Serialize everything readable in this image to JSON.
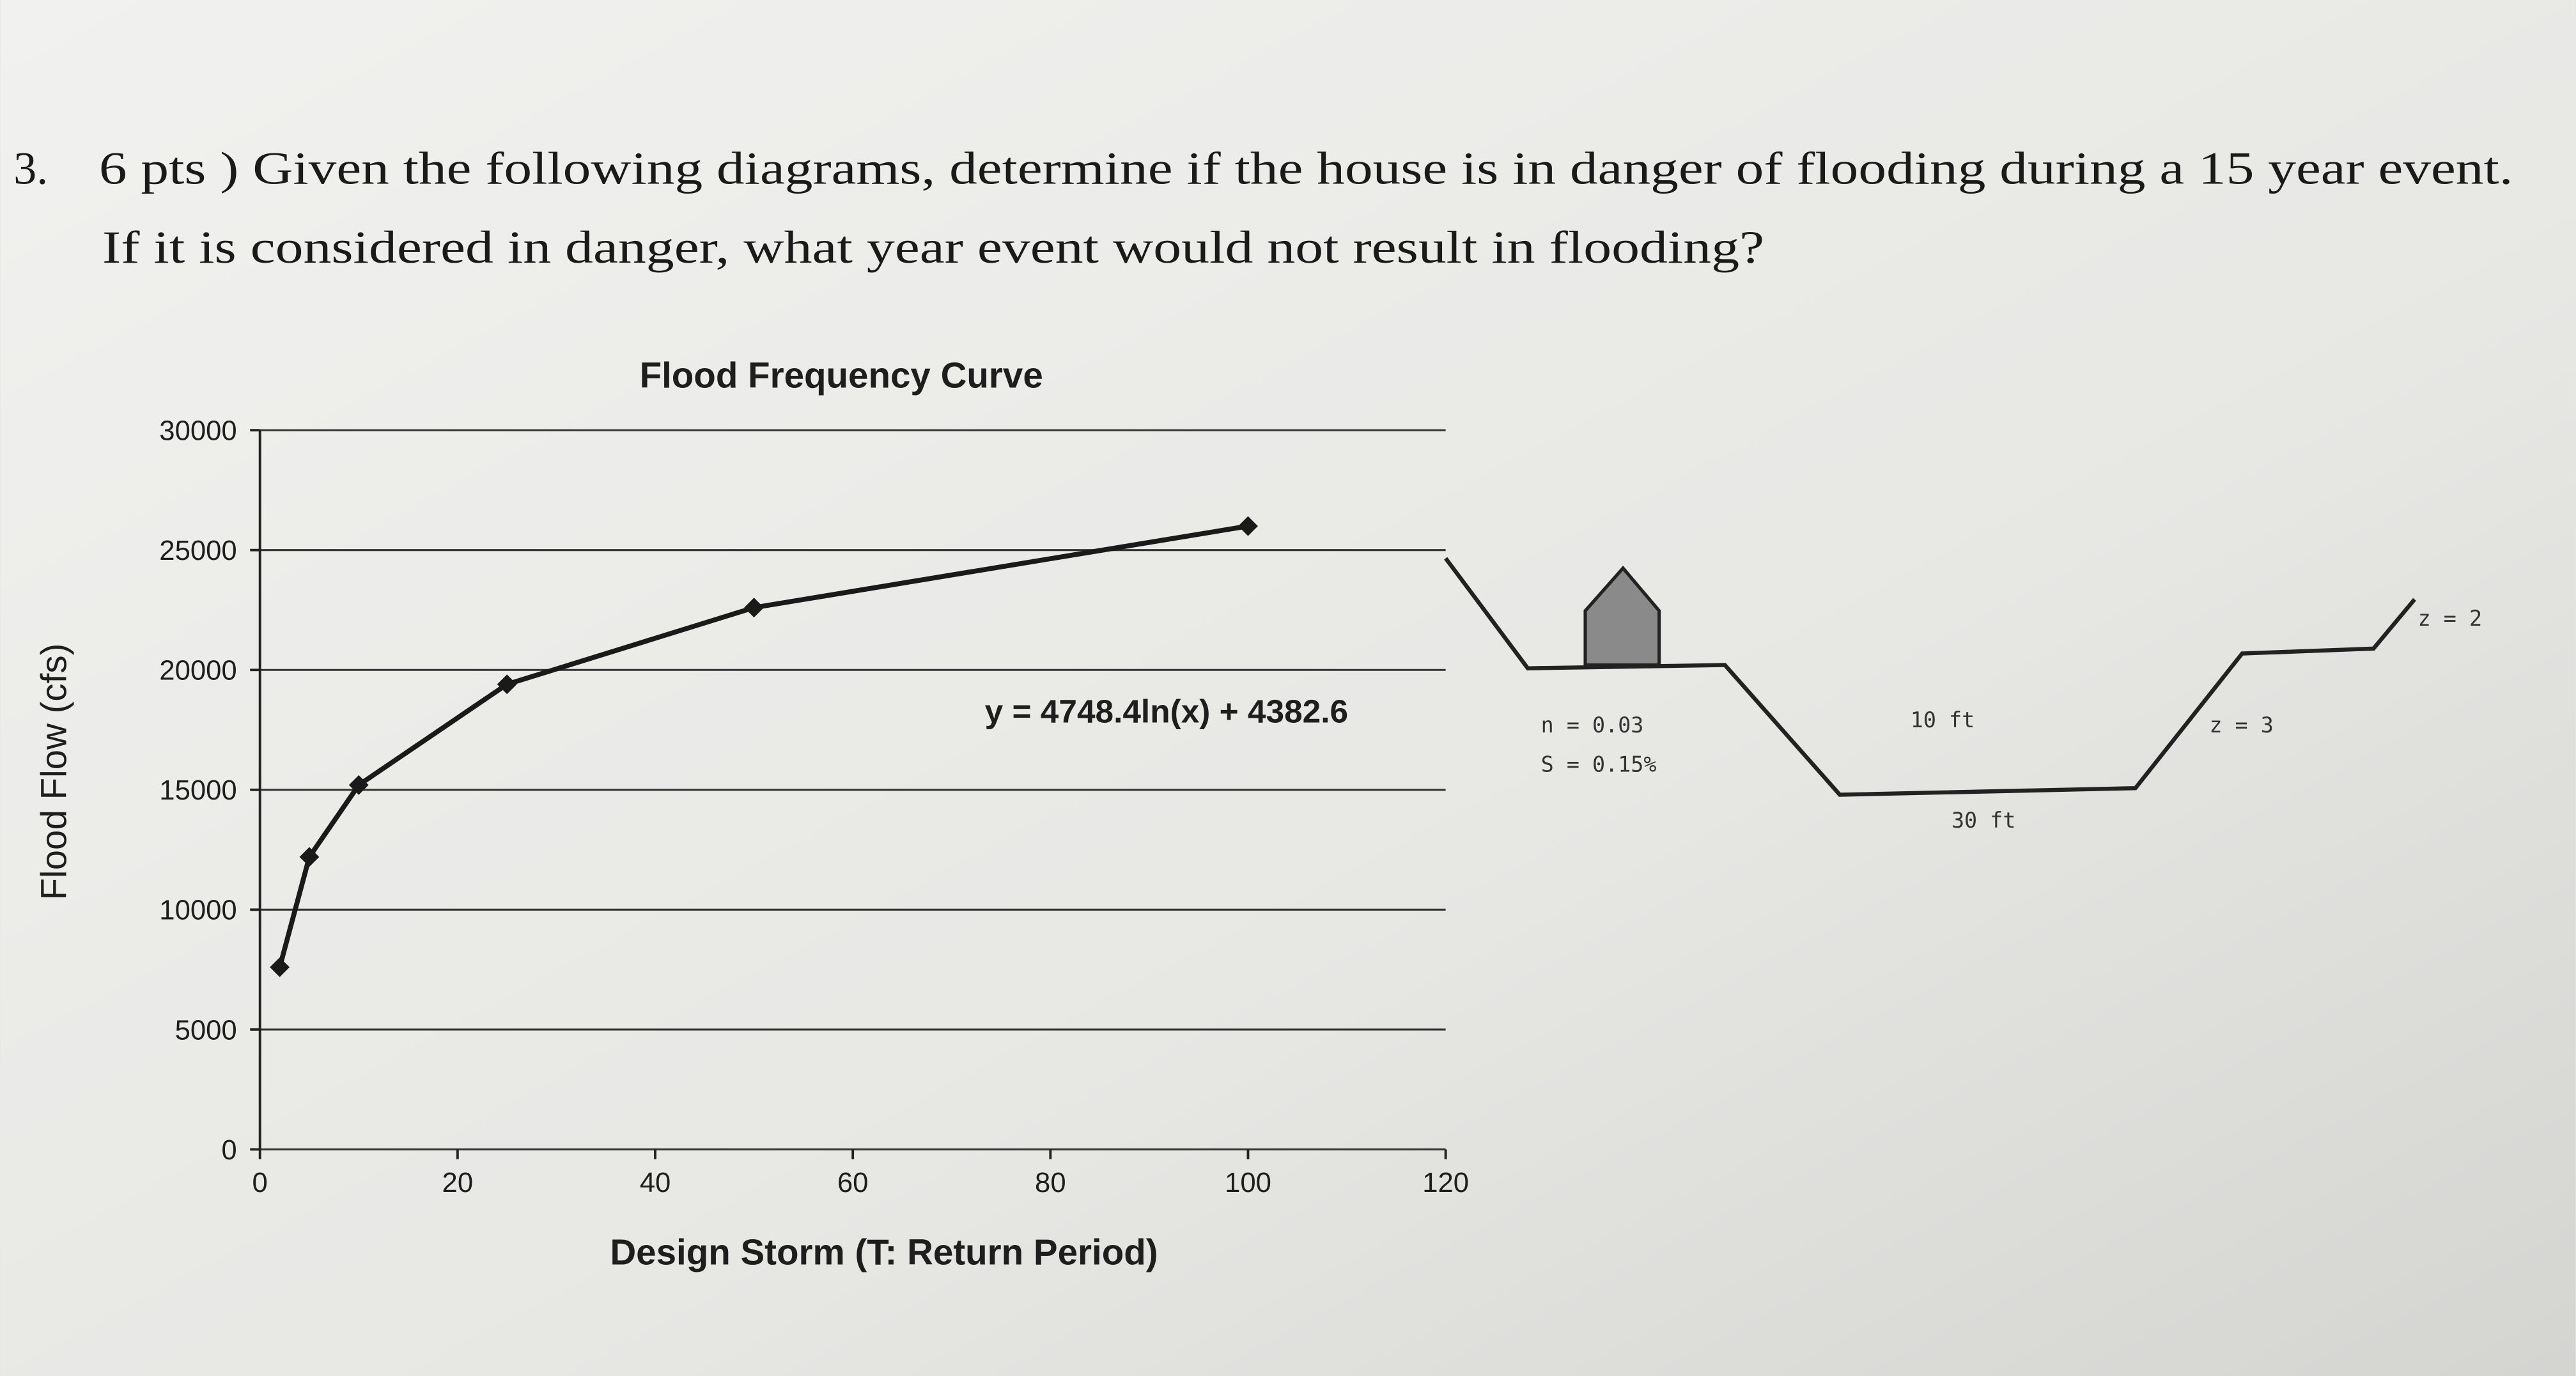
{
  "question": {
    "number": "3.",
    "line1": "6 pts ) Given the following diagrams, determine if the house is in danger of flooding during a 15 year event.",
    "line2": "If it is considered in danger, what year event would not result in flooding?"
  },
  "chart_data": {
    "type": "line",
    "title": "Flood Frequency Curve",
    "x_label": "Design Storm (T: Return Period)",
    "y_label": "Flood Flow (cfs)",
    "annotation": "y = 4748.4ln(x) + 4382.6",
    "x": [
      2,
      5,
      10,
      25,
      50,
      100
    ],
    "series": [
      {
        "name": "Flood Flow",
        "color": "#1a1a1a",
        "values": [
          7600,
          12200,
          15200,
          19400,
          22600,
          26000
        ]
      }
    ],
    "xlim": [
      0,
      120
    ],
    "xticks": [
      0,
      20,
      40,
      60,
      80,
      100,
      120
    ],
    "ylim": [
      0,
      30000
    ],
    "yticks": [
      0,
      5000,
      10000,
      15000,
      20000,
      25000,
      30000
    ],
    "grid": true
  },
  "channel": {
    "roughness": "n = 0.03",
    "slope": "S = 0.15%",
    "depth": "10 ft",
    "bottom_width": "30 ft",
    "side_slope_lower": "z = 3",
    "side_slope_upper": "z = 2"
  }
}
